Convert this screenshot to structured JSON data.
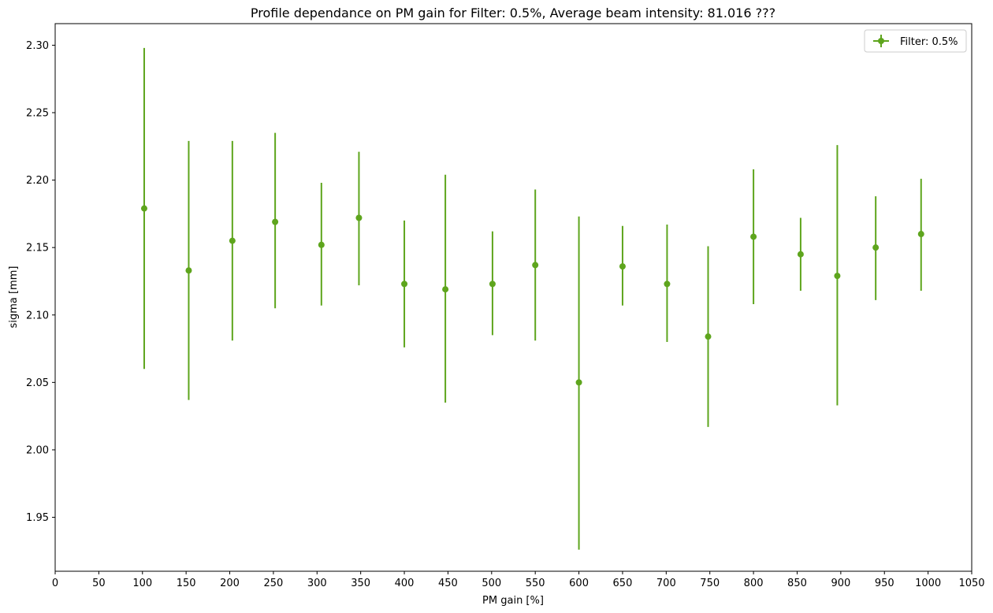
{
  "chart_data": {
    "type": "scatter",
    "title": "Profile dependance on PM gain for Filter: 0.5%, Average beam intensity: 81.016 ???",
    "xlabel": "PM gain [%]",
    "ylabel": "sigma [mm]",
    "xlim": [
      0,
      1050
    ],
    "ylim": [
      1.91,
      2.316
    ],
    "x_ticks": [
      0,
      50,
      100,
      150,
      200,
      250,
      300,
      350,
      400,
      450,
      500,
      550,
      600,
      650,
      700,
      750,
      800,
      850,
      900,
      950,
      1000,
      1050
    ],
    "y_ticks": [
      1.95,
      2.0,
      2.05,
      2.1,
      2.15,
      2.2,
      2.25,
      2.3
    ],
    "y_tick_labels": [
      "1.95",
      "2.00",
      "2.05",
      "2.10",
      "2.15",
      "2.20",
      "2.25",
      "2.30"
    ],
    "legend": {
      "position": "top-right",
      "entries": [
        "Filter: 0.5%"
      ]
    },
    "series": [
      {
        "name": "Filter: 0.5%",
        "color": "#5ea51d",
        "points": [
          {
            "x": 102,
            "y": 2.179,
            "ylow": 2.06,
            "yhigh": 2.298
          },
          {
            "x": 153,
            "y": 2.133,
            "ylow": 2.037,
            "yhigh": 2.229
          },
          {
            "x": 203,
            "y": 2.155,
            "ylow": 2.081,
            "yhigh": 2.229
          },
          {
            "x": 252,
            "y": 2.169,
            "ylow": 2.105,
            "yhigh": 2.235
          },
          {
            "x": 305,
            "y": 2.152,
            "ylow": 2.107,
            "yhigh": 2.198
          },
          {
            "x": 348,
            "y": 2.172,
            "ylow": 2.122,
            "yhigh": 2.221
          },
          {
            "x": 400,
            "y": 2.123,
            "ylow": 2.076,
            "yhigh": 2.17
          },
          {
            "x": 447,
            "y": 2.119,
            "ylow": 2.035,
            "yhigh": 2.204
          },
          {
            "x": 501,
            "y": 2.123,
            "ylow": 2.085,
            "yhigh": 2.162
          },
          {
            "x": 550,
            "y": 2.137,
            "ylow": 2.081,
            "yhigh": 2.193
          },
          {
            "x": 600,
            "y": 2.05,
            "ylow": 1.926,
            "yhigh": 2.173
          },
          {
            "x": 650,
            "y": 2.136,
            "ylow": 2.107,
            "yhigh": 2.166
          },
          {
            "x": 701,
            "y": 2.123,
            "ylow": 2.08,
            "yhigh": 2.167
          },
          {
            "x": 748,
            "y": 2.084,
            "ylow": 2.017,
            "yhigh": 2.151
          },
          {
            "x": 800,
            "y": 2.158,
            "ylow": 2.108,
            "yhigh": 2.208
          },
          {
            "x": 854,
            "y": 2.145,
            "ylow": 2.118,
            "yhigh": 2.172
          },
          {
            "x": 896,
            "y": 2.129,
            "ylow": 2.033,
            "yhigh": 2.226
          },
          {
            "x": 940,
            "y": 2.15,
            "ylow": 2.111,
            "yhigh": 2.188
          },
          {
            "x": 992,
            "y": 2.16,
            "ylow": 2.118,
            "yhigh": 2.201
          }
        ]
      }
    ]
  }
}
